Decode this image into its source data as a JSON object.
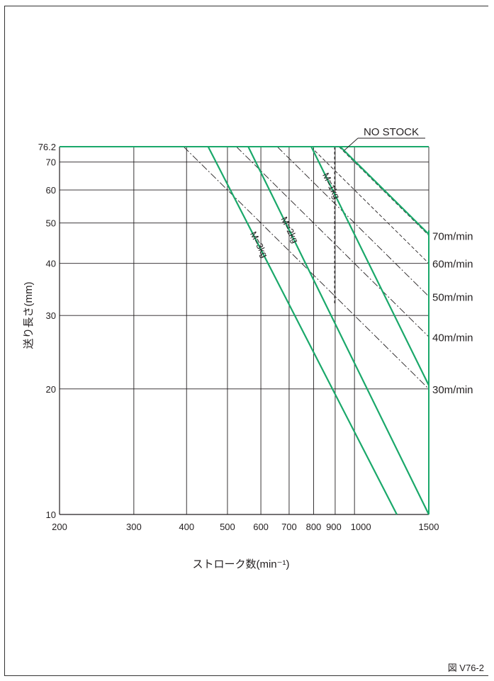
{
  "chart_data": {
    "type": "line",
    "title": "",
    "xlabel": "ストローク数(min⁻¹)",
    "ylabel": "送り長さ(mm)",
    "x_scale": "log",
    "y_scale": "log",
    "xlim": [
      200,
      1500
    ],
    "ylim": [
      10,
      76.2
    ],
    "x_ticks": [
      200,
      300,
      400,
      500,
      600,
      700,
      800,
      900,
      1000,
      1500
    ],
    "x_tick_labels": [
      "200",
      "300",
      "400",
      "500",
      "600",
      "700",
      "800",
      "900",
      "1000",
      "1500"
    ],
    "y_ticks": [
      10,
      20,
      30,
      40,
      50,
      60,
      70,
      76.2
    ],
    "y_tick_labels": [
      "10",
      "20",
      "30",
      "40",
      "50",
      "60",
      "70",
      "76.2"
    ],
    "grid": true,
    "color": "#1aa86a",
    "series": [
      {
        "name": "M=1kg",
        "points": [
          [
            790,
            76.2
          ],
          [
            1500,
            20.4
          ]
        ]
      },
      {
        "name": "M=2kg",
        "points": [
          [
            560,
            76.2
          ],
          [
            1500,
            10.0
          ]
        ]
      },
      {
        "name": "M=3kg",
        "points": [
          [
            450,
            76.2
          ],
          [
            1260,
            10.0
          ]
        ]
      }
    ],
    "speed_lines": [
      {
        "name": "70m/min",
        "speed": 70
      },
      {
        "name": "60m/min",
        "speed": 60
      },
      {
        "name": "50m/min",
        "speed": 50
      },
      {
        "name": "40m/min",
        "speed": 40
      },
      {
        "name": "30m/min",
        "speed": 30
      }
    ],
    "no_stock": {
      "label": "NO STOCK",
      "points": [
        [
          925,
          76.2
        ],
        [
          1500,
          47
        ]
      ]
    },
    "figure_label": "図 V76-2"
  }
}
